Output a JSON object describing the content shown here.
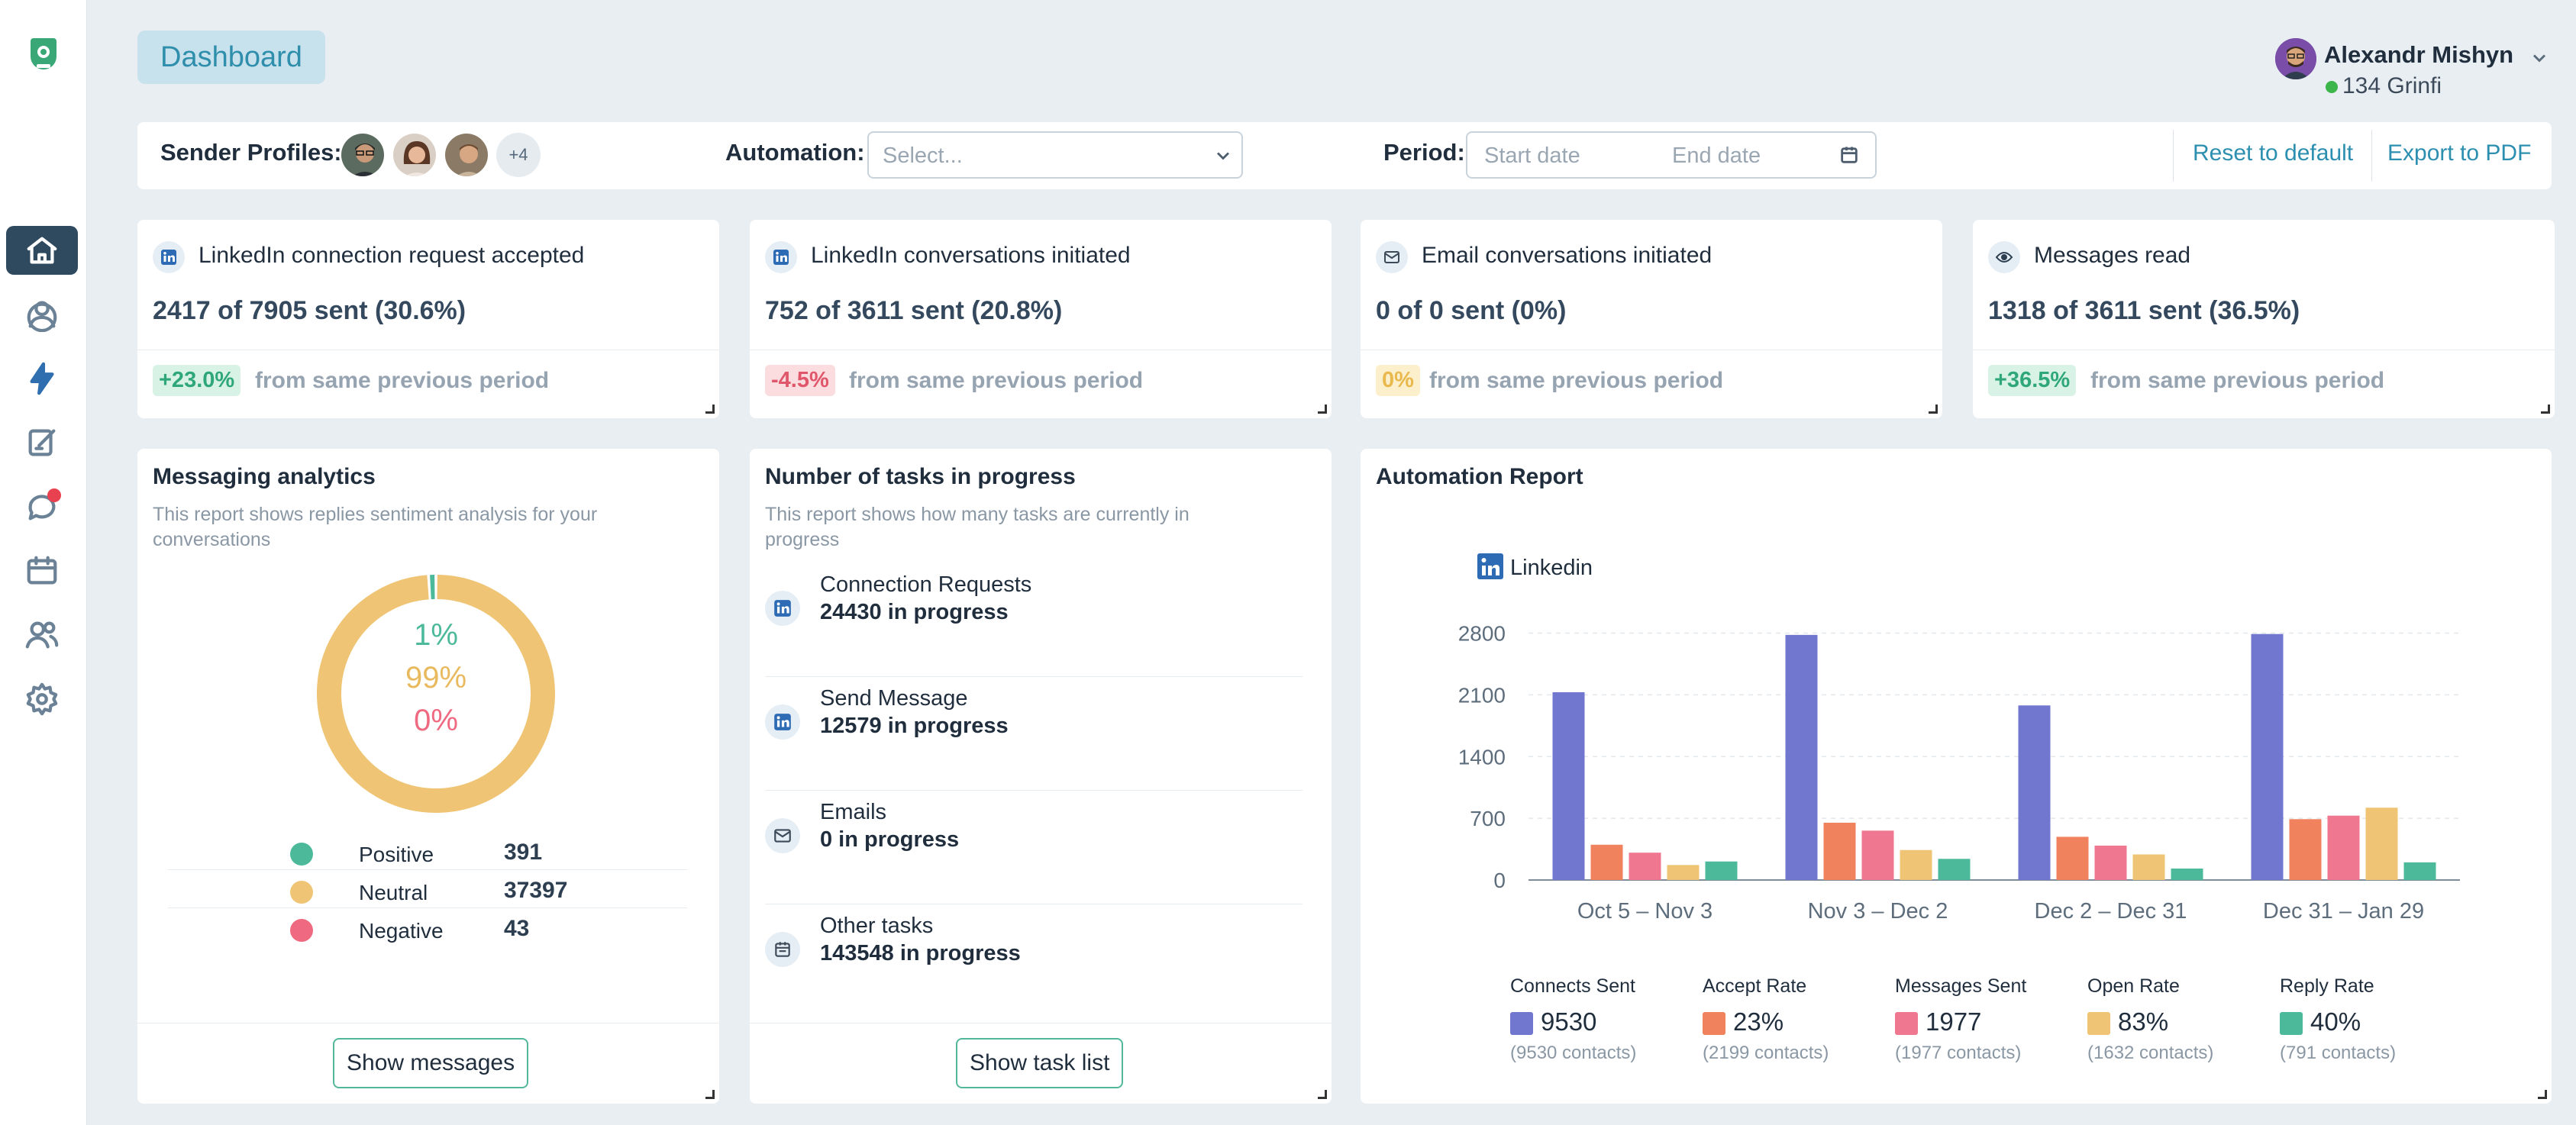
{
  "colors": {
    "positive": "#4cb99a",
    "neutral": "#efc474",
    "negative": "#ef6a81",
    "linkedin": "#2e6bb5",
    "connects": "#7176cf",
    "accept": "#f0825e",
    "messages": "#f07790",
    "open": "#efc474",
    "reply": "#4cb99a"
  },
  "header": {
    "title": "Dashboard",
    "user_name": "Alexandr Mishyn",
    "user_credits": "134 Grinfi"
  },
  "filters": {
    "sender_label": "Sender Profiles:",
    "more_profiles": "+4",
    "automation_label": "Automation:",
    "automation_placeholder": "Select...",
    "period_label": "Period:",
    "start_placeholder": "Start date",
    "end_placeholder": "End date",
    "reset": "Reset to default",
    "export": "Export to PDF"
  },
  "stats": [
    {
      "icon": "linkedin-icon",
      "title": "LinkedIn connection request accepted",
      "value": "2417 of 7905 sent (30.6%)",
      "delta": "+23.0%",
      "suffix": "from same previous period"
    },
    {
      "icon": "linkedin-icon",
      "title": "LinkedIn conversations initiated",
      "value": "752 of 3611 sent (20.8%)",
      "delta": "-4.5%",
      "suffix": "from same previous period"
    },
    {
      "icon": "envelope-icon",
      "title": "Email conversations initiated",
      "value": "0 of 0 sent (0%)",
      "delta": "0%",
      "suffix": "from same previous period"
    },
    {
      "icon": "eye-icon",
      "title": "Messages read",
      "value": "1318 of 3611 sent (36.5%)",
      "delta": "+36.5%",
      "suffix": "from same previous period"
    }
  ],
  "messaging": {
    "title": "Messaging analytics",
    "description": "This report shows replies sentiment analysis for your conversations",
    "positive_pct": "1%",
    "neutral_pct": "99%",
    "negative_pct": "0%",
    "positive_fraction": 0.01,
    "neutral_fraction": 0.99,
    "negative_fraction": 0.0,
    "legend": [
      {
        "name": "Positive",
        "value": "391"
      },
      {
        "name": "Neutral",
        "value": "37397"
      },
      {
        "name": "Negative",
        "value": "43"
      }
    ],
    "button": "Show messages"
  },
  "tasks": {
    "title": "Number of tasks in progress",
    "description": "This report shows how many tasks are currently in progress",
    "items": [
      {
        "icon": "linkedin-icon",
        "name": "Connection Requests",
        "count": "24430 in progress"
      },
      {
        "icon": "linkedin-icon",
        "name": "Send Message",
        "count": "12579 in progress"
      },
      {
        "icon": "envelope-icon",
        "name": "Emails",
        "count": "0 in progress"
      },
      {
        "icon": "calendar-icon",
        "name": "Other tasks",
        "count": "143548 in progress"
      }
    ],
    "button": "Show task list"
  },
  "automation": {
    "title": "Automation Report",
    "legend_items": [
      {
        "name": "Connects Sent",
        "value": "9530",
        "sub": "(9530 contacts)"
      },
      {
        "name": "Accept Rate",
        "value": "23%",
        "sub": "(2199 contacts)"
      },
      {
        "name": "Messages Sent",
        "value": "1977",
        "sub": "(1977 contacts)"
      },
      {
        "name": "Open Rate",
        "value": "83%",
        "sub": "(1632 contacts)"
      },
      {
        "name": "Reply Rate",
        "value": "40%",
        "sub": "(791 contacts)"
      }
    ]
  },
  "chart_data": {
    "type": "bar",
    "title": "Linkedin",
    "categories": [
      "Oct 5 – Nov 3",
      "Nov 3 – Dec 2",
      "Dec 2 – Dec 31",
      "Dec 31 – Jan 29"
    ],
    "yticks": [
      0,
      700,
      1400,
      2100,
      2800
    ],
    "ylim": [
      0,
      2900
    ],
    "grid": true,
    "series": [
      {
        "name": "Connects Sent",
        "values": [
          2130,
          2780,
          1980,
          2790
        ]
      },
      {
        "name": "Accept Rate",
        "values": [
          400,
          650,
          490,
          690
        ]
      },
      {
        "name": "Messages Sent",
        "values": [
          310,
          560,
          390,
          730
        ]
      },
      {
        "name": "Open Rate",
        "values": [
          170,
          340,
          290,
          820
        ]
      },
      {
        "name": "Reply Rate",
        "values": [
          210,
          240,
          130,
          200
        ]
      }
    ]
  }
}
